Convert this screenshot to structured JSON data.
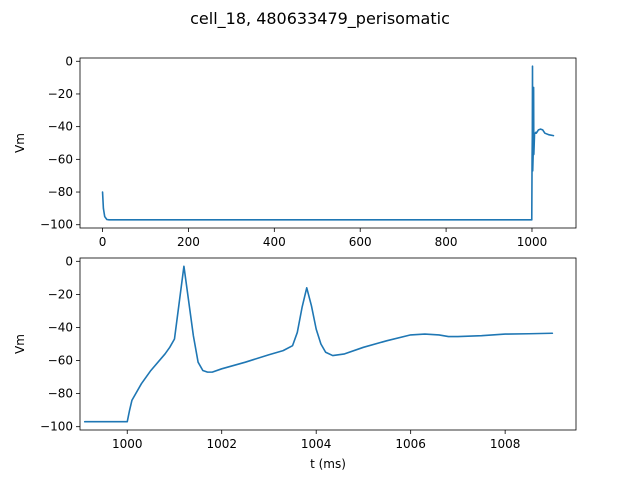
{
  "figure": {
    "title": "cell_18, 480633479_perisomatic"
  },
  "chart_data": [
    {
      "type": "line",
      "title": "",
      "xlabel": "",
      "ylabel": "Vm",
      "xlim": [
        -52.5,
        1102.5
      ],
      "ylim": [
        -102,
        2
      ],
      "xticks": [
        0,
        200,
        400,
        600,
        800,
        1000
      ],
      "yticks": [
        -100,
        -80,
        -60,
        -40,
        -20,
        0
      ],
      "grid": false,
      "series": [
        {
          "color": "#1f77b4",
          "x": [
            0,
            2,
            5,
            10,
            15,
            25,
            100,
            500,
            900,
            999,
            999.5,
            1000.2,
            1000.8,
            1001.2,
            1001.7,
            1003.0,
            1003.8,
            1004.3,
            1005.0,
            1006.0,
            1008.0,
            1009.0,
            1010,
            1015,
            1020,
            1025,
            1030,
            1040,
            1050
          ],
          "y": [
            -80,
            -90,
            -95,
            -96.8,
            -97,
            -97,
            -97,
            -97,
            -97,
            -97,
            -97,
            -60,
            -45,
            -3,
            -67,
            -55,
            -16,
            -57,
            -52,
            -44,
            -44,
            -43.5,
            -44,
            -42,
            -41.5,
            -42,
            -44,
            -45,
            -45.5
          ]
        }
      ]
    },
    {
      "type": "line",
      "title": "",
      "xlabel": "t (ms)",
      "ylabel": "Vm",
      "xlim": [
        999.0,
        1009.5
      ],
      "ylim": [
        -102,
        2
      ],
      "xticks": [
        1000,
        1002,
        1004,
        1006,
        1008
      ],
      "yticks": [
        -100,
        -80,
        -60,
        -40,
        -20,
        0
      ],
      "grid": false,
      "series": [
        {
          "color": "#1f77b4",
          "x": [
            999.1,
            999.5,
            1000.0,
            1000.05,
            1000.1,
            1000.3,
            1000.5,
            1000.8,
            1000.9,
            1001.0,
            1001.1,
            1001.2,
            1001.3,
            1001.4,
            1001.5,
            1001.6,
            1001.7,
            1001.8,
            1002.0,
            1002.5,
            1003.0,
            1003.3,
            1003.5,
            1003.6,
            1003.7,
            1003.8,
            1003.9,
            1004.0,
            1004.1,
            1004.2,
            1004.35,
            1004.6,
            1005.0,
            1005.5,
            1006.0,
            1006.3,
            1006.6,
            1006.8,
            1007.0,
            1007.5,
            1008.0,
            1008.5,
            1009.0
          ],
          "y": [
            -97,
            -97,
            -97,
            -90,
            -84,
            -74,
            -66,
            -56,
            -52,
            -47,
            -25,
            -3,
            -24,
            -45,
            -61,
            -66,
            -67,
            -67,
            -65,
            -61,
            -56.5,
            -54,
            -51,
            -43,
            -28,
            -16,
            -27,
            -41,
            -50,
            -55,
            -57,
            -56,
            -52,
            -48,
            -44.5,
            -44,
            -44.5,
            -45.5,
            -45.5,
            -45,
            -44,
            -43.8,
            -43.5
          ]
        }
      ]
    }
  ]
}
